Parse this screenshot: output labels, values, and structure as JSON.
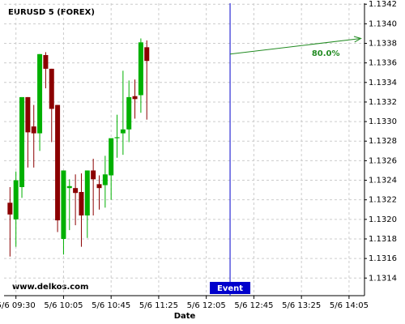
{
  "chart_data": {
    "type": "candlestick",
    "title": "EURUSD 5 (FOREX)",
    "watermark": "www.delkos.com",
    "x_label": "Date",
    "x": [
      565,
      570,
      575,
      580,
      585,
      590,
      595,
      600,
      605,
      610,
      615,
      620,
      625,
      630,
      635,
      640,
      645,
      650,
      655,
      660,
      665,
      670,
      675,
      680
    ],
    "open": [
      1.13217,
      1.132,
      1.13233,
      1.13325,
      1.13295,
      1.13288,
      1.13368,
      1.13354,
      1.13317,
      1.1318,
      1.13232,
      1.13232,
      1.13228,
      1.13204,
      1.1325,
      1.13236,
      1.13235,
      1.13245,
      1.13283,
      1.13288,
      1.13292,
      1.13326,
      1.13327,
      1.13376
    ],
    "high": [
      1.13233,
      1.13249,
      1.13325,
      1.13325,
      1.13317,
      1.13369,
      1.13371,
      1.13354,
      1.13317,
      1.1325,
      1.13241,
      1.13246,
      1.13247,
      1.1325,
      1.13262,
      1.13245,
      1.13265,
      1.13283,
      1.13307,
      1.13352,
      1.13342,
      1.13343,
      1.13385,
      1.13383
    ],
    "low": [
      1.13162,
      1.13172,
      1.13222,
      1.13253,
      1.13253,
      1.1327,
      1.13334,
      1.13279,
      1.13187,
      1.13164,
      1.13189,
      1.13194,
      1.13172,
      1.13181,
      1.13204,
      1.1321,
      1.13212,
      1.1322,
      1.13263,
      1.13266,
      1.13279,
      1.13303,
      1.13309,
      1.13302
    ],
    "close": [
      1.13205,
      1.1324,
      1.13325,
      1.13289,
      1.13288,
      1.13369,
      1.13354,
      1.13313,
      1.13199,
      1.1325,
      1.13234,
      1.13227,
      1.13204,
      1.1325,
      1.13241,
      1.13232,
      1.13246,
      1.13283,
      1.13284,
      1.13292,
      1.13325,
      1.13323,
      1.13381,
      1.13362
    ],
    "up_color": "#00b000",
    "down_color": "#8b0000",
    "xlim": [
      560,
      863
    ],
    "xticks": [
      {
        "value": 570,
        "label": "5/6 09:30"
      },
      {
        "value": 610,
        "label": "5/6 10:05"
      },
      {
        "value": 650,
        "label": "5/6 10:45"
      },
      {
        "value": 690,
        "label": "5/6 11:25"
      },
      {
        "value": 730,
        "label": "5/6 12:05"
      },
      {
        "value": 770,
        "label": "5/6 12:45"
      },
      {
        "value": 810,
        "label": "5/6 13:25"
      },
      {
        "value": 850,
        "label": "5/6 14:05"
      }
    ],
    "ylim": [
      1.13122,
      1.13421
    ],
    "yticks": [
      1.1314,
      1.1316,
      1.1318,
      {
        "value": 1.132,
        "label": "1.1320"
      },
      1.1322,
      1.1324,
      1.1326,
      1.1328,
      {
        "value": 1.133,
        "label": "1.1330"
      },
      1.1332,
      1.1334,
      1.1336,
      1.1338,
      {
        "value": 1.134,
        "label": "1.1340"
      },
      1.1342
    ],
    "grid": true,
    "event": {
      "label": "Event",
      "x": 750,
      "color": "#0000cc"
    },
    "forecast": {
      "label": "80.0%",
      "x": [
        750,
        860
      ],
      "y": [
        1.13369,
        1.13385
      ],
      "color": "#228b22"
    }
  }
}
